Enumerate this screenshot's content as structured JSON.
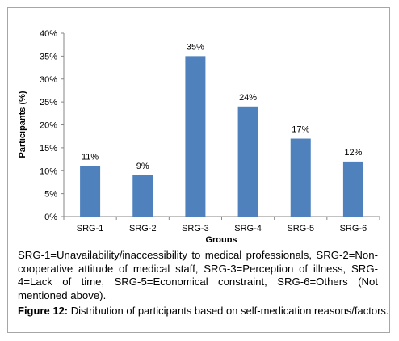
{
  "chart_data": {
    "type": "bar",
    "categories": [
      "SRG-1",
      "SRG-2",
      "SRG-3",
      "SRG-4",
      "SRG-5",
      "SRG-6"
    ],
    "values": [
      11,
      9,
      35,
      24,
      17,
      12
    ],
    "data_labels": [
      "11%",
      "9%",
      "35%",
      "24%",
      "17%",
      "12%"
    ],
    "xlabel": "Groups",
    "ylabel": "Participants (%)",
    "ylim": [
      0,
      40
    ],
    "yticks": [
      "0%",
      "5%",
      "10%",
      "15%",
      "20%",
      "25%",
      "30%",
      "35%",
      "40%"
    ],
    "bar_color": "#4f81bd",
    "grid": false
  },
  "legend_text": "SRG-1=Unavailability/inaccessibility to medical professionals, SRG-2=Non-cooperative attitude of medical staff, SRG-3=Perception of illness, SRG-4=Lack of time, SRG-5=Economical constraint, SRG-6=Others (Not mentioned above).",
  "caption": {
    "label": "Figure 12:",
    "text": " Distribution of participants based on self-medication reasons/factors."
  }
}
